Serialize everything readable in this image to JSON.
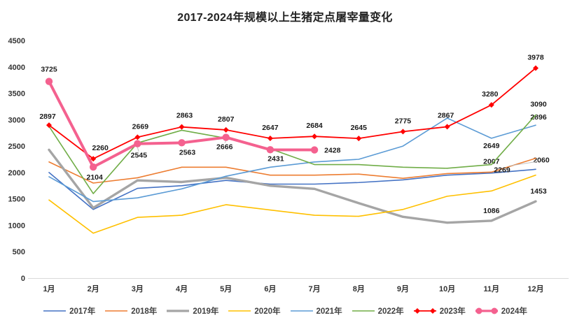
{
  "chart_data": {
    "type": "line",
    "title": "2017-2024年规模以上生猪定点屠宰量变化",
    "categories": [
      "1月",
      "2月",
      "3月",
      "4月",
      "5月",
      "6月",
      "7月",
      "8月",
      "9月",
      "10月",
      "11月",
      "12月"
    ],
    "y_axis": {
      "min": 0,
      "max": 4500,
      "step": 500,
      "ticks": [
        0,
        500,
        1000,
        1500,
        2000,
        2500,
        3000,
        3500,
        4000,
        4500
      ]
    },
    "grid": false,
    "legend_position": "bottom",
    "axis_line_color": "#d9d9d9",
    "series": [
      {
        "name": "2017年",
        "color": "#4472C4",
        "width": 1.6,
        "marker": "none",
        "values": [
          2000,
          1300,
          1700,
          1750,
          1850,
          1780,
          1780,
          1810,
          1860,
          1950,
          1990,
          2060
        ],
        "labels": [
          {
            "i": 11,
            "t": "2060",
            "dx": 8,
            "dy": -10
          }
        ]
      },
      {
        "name": "2018年",
        "color": "#ED7D31",
        "width": 1.6,
        "marker": "none",
        "values": [
          2200,
          1800,
          1900,
          2100,
          2100,
          1950,
          1950,
          1970,
          1890,
          1980,
          2007,
          2269
        ],
        "labels": [
          {
            "i": 10,
            "t": "2007",
            "dx": 0,
            "dy": -12
          },
          {
            "i": 11,
            "t": "2269",
            "dx": -48,
            "dy": 20,
            "leader": true
          }
        ]
      },
      {
        "name": "2019年",
        "color": "#A5A5A5",
        "width": 3.4,
        "marker": "none",
        "values": [
          2430,
          1330,
          1850,
          1820,
          1900,
          1750,
          1690,
          1420,
          1160,
          1050,
          1086,
          1453
        ],
        "labels": [
          {
            "i": 10,
            "t": "1086",
            "dx": 0,
            "dy": -11
          },
          {
            "i": 11,
            "t": "1453",
            "dx": 4,
            "dy": -11
          }
        ]
      },
      {
        "name": "2020年",
        "color": "#FFC000",
        "width": 1.6,
        "marker": "none",
        "values": [
          1480,
          850,
          1150,
          1190,
          1390,
          1290,
          1190,
          1170,
          1300,
          1550,
          1650,
          1950
        ],
        "labels": []
      },
      {
        "name": "2021年",
        "color": "#5B9BD5",
        "width": 1.6,
        "marker": "none",
        "values": [
          1920,
          1450,
          1520,
          1690,
          1930,
          2100,
          2200,
          2250,
          2500,
          3030,
          2649,
          2896
        ],
        "labels": [
          {
            "i": 10,
            "t": "2649",
            "dx": 0,
            "dy": 14
          },
          {
            "i": 11,
            "t": "2896",
            "dx": 4,
            "dy": -8
          }
        ]
      },
      {
        "name": "2022年",
        "color": "#70AD47",
        "width": 1.6,
        "marker": "none",
        "values": [
          2875,
          1600,
          2560,
          2800,
          2650,
          2450,
          2150,
          2150,
          2100,
          2080,
          2150,
          3090
        ],
        "labels": [
          {
            "i": 11,
            "t": "3090",
            "dx": 4,
            "dy": -12
          }
        ]
      },
      {
        "name": "2023年",
        "color": "#FF0000",
        "width": 1.8,
        "marker": "diamond",
        "values": [
          2897,
          2260,
          2669,
          2863,
          2807,
          2647,
          2684,
          2645,
          2775,
          2867,
          3280,
          3978
        ],
        "labels": [
          {
            "i": 0,
            "t": "2897",
            "dx": -2,
            "dy": -9
          },
          {
            "i": 1,
            "t": "2260",
            "dx": 10,
            "dy": -12
          },
          {
            "i": 2,
            "t": "2669",
            "dx": 4,
            "dy": -12
          },
          {
            "i": 3,
            "t": "2863",
            "dx": 4,
            "dy": -13
          },
          {
            "i": 4,
            "t": "2807",
            "dx": 0,
            "dy": -12
          },
          {
            "i": 5,
            "t": "2647",
            "dx": 0,
            "dy": -12
          },
          {
            "i": 6,
            "t": "2684",
            "dx": 0,
            "dy": -12
          },
          {
            "i": 7,
            "t": "2645",
            "dx": 0,
            "dy": -12
          },
          {
            "i": 8,
            "t": "2775",
            "dx": 0,
            "dy": -12
          },
          {
            "i": 9,
            "t": "2867",
            "dx": -2,
            "dy": -13
          },
          {
            "i": 10,
            "t": "3280",
            "dx": -2,
            "dy": -12
          },
          {
            "i": 11,
            "t": "3978",
            "dx": 0,
            "dy": -12
          }
        ]
      },
      {
        "name": "2024年",
        "color": "#F4618F",
        "width": 4,
        "marker": "circle",
        "values": [
          3725,
          2104,
          2545,
          2563,
          2666,
          2431,
          2428
        ],
        "labels": [
          {
            "i": 0,
            "t": "3725",
            "dx": 0,
            "dy": -14
          },
          {
            "i": 1,
            "t": "2104",
            "dx": 2,
            "dy": 18
          },
          {
            "i": 2,
            "t": "2545",
            "dx": 2,
            "dy": 20,
            "leader": true
          },
          {
            "i": 3,
            "t": "2563",
            "dx": 8,
            "dy": 17
          },
          {
            "i": 4,
            "t": "2666",
            "dx": -2,
            "dy": 17,
            "leader": true
          },
          {
            "i": 5,
            "t": "2431",
            "dx": 8,
            "dy": 16
          },
          {
            "i": 6,
            "t": "2428",
            "dx": 14,
            "dy": 4,
            "anchor": "start"
          }
        ]
      }
    ]
  }
}
